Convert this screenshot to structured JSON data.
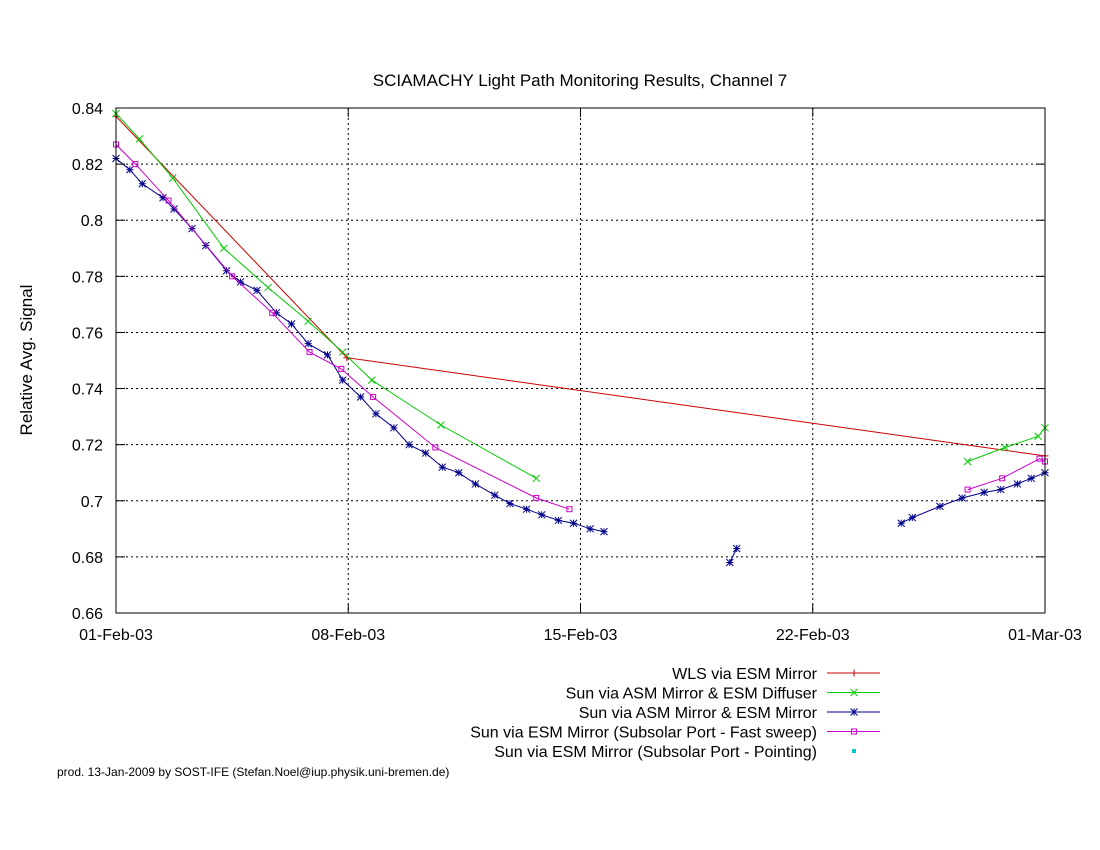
{
  "chart_data": {
    "type": "line",
    "title": "SCIAMACHY Light Path Monitoring Results, Channel 7",
    "xlabel": "",
    "ylabel": "Relative Avg. Signal",
    "xlim": [
      "2003-02-01",
      "2003-03-01"
    ],
    "ylim": [
      0.66,
      0.84
    ],
    "x_ticks": [
      {
        "date": "2003-02-01",
        "label": "01-Feb-03"
      },
      {
        "date": "2003-02-08",
        "label": "08-Feb-03"
      },
      {
        "date": "2003-02-15",
        "label": "15-Feb-03"
      },
      {
        "date": "2003-02-22",
        "label": "22-Feb-03"
      },
      {
        "date": "2003-03-01",
        "label": "01-Mar-03"
      }
    ],
    "y_ticks": [
      {
        "value": 0.66,
        "label": "0.66"
      },
      {
        "value": 0.68,
        "label": "0.68"
      },
      {
        "value": 0.7,
        "label": "0.7"
      },
      {
        "value": 0.72,
        "label": "0.72"
      },
      {
        "value": 0.74,
        "label": "0.74"
      },
      {
        "value": 0.76,
        "label": "0.76"
      },
      {
        "value": 0.78,
        "label": "0.78"
      },
      {
        "value": 0.8,
        "label": "0.8"
      },
      {
        "value": 0.82,
        "label": "0.82"
      },
      {
        "value": 0.84,
        "label": "0.84"
      }
    ],
    "grid": "x-only",
    "legend_position": "bottom-right",
    "series": [
      {
        "name": "WLS via ESM Mirror",
        "color": "#cc0000",
        "marker": "plus",
        "segments": [
          [
            [
              "2003-02-01 00:00",
              0.837
            ],
            [
              "2003-02-07 23:00",
              0.751
            ],
            [
              "2003-03-01 00:00",
              0.716
            ]
          ]
        ]
      },
      {
        "name": "Sun via ASM Mirror & ESM Diffuser",
        "color": "#00cc00",
        "marker": "cross",
        "segments": [
          [
            [
              "2003-02-01 00:00",
              0.838
            ],
            [
              "2003-02-01 17:00",
              0.829
            ],
            [
              "2003-02-02 17:00",
              0.815
            ],
            [
              "2003-02-04 06:00",
              0.79
            ],
            [
              "2003-02-05 14:00",
              0.776
            ],
            [
              "2003-02-06 19:00",
              0.764
            ],
            [
              "2003-02-07 20:00",
              0.753
            ],
            [
              "2003-02-08 17:00",
              0.743
            ],
            [
              "2003-02-10 19:00",
              0.727
            ],
            [
              "2003-02-13 16:00",
              0.708
            ]
          ],
          [
            [
              "2003-02-26 16:00",
              0.714
            ],
            [
              "2003-02-27 19:00",
              0.719
            ],
            [
              "2003-02-28 19:00",
              0.723
            ],
            [
              "2003-03-01 00:00",
              0.726
            ]
          ]
        ]
      },
      {
        "name": "Sun via ASM Mirror & ESM Mirror",
        "color": "#00008b",
        "marker": "star",
        "segments": [
          [
            [
              "2003-02-01 00:00",
              0.822
            ],
            [
              "2003-02-01 10:00",
              0.818
            ],
            [
              "2003-02-01 19:00",
              0.813
            ],
            [
              "2003-02-02 10:00",
              0.808
            ],
            [
              "2003-02-02 18:00",
              0.804
            ],
            [
              "2003-02-03 07:00",
              0.797
            ],
            [
              "2003-02-03 17:00",
              0.791
            ],
            [
              "2003-02-04 08:00",
              0.782
            ],
            [
              "2003-02-04 18:00",
              0.778
            ],
            [
              "2003-02-05 06:00",
              0.775
            ],
            [
              "2003-02-05 20:00",
              0.767
            ],
            [
              "2003-02-06 07:00",
              0.763
            ],
            [
              "2003-02-06 19:00",
              0.756
            ],
            [
              "2003-02-07 09:00",
              0.752
            ],
            [
              "2003-02-07 20:00",
              0.743
            ],
            [
              "2003-02-08 09:00",
              0.737
            ],
            [
              "2003-02-08 20:00",
              0.731
            ],
            [
              "2003-02-09 09:00",
              0.726
            ],
            [
              "2003-02-09 20:00",
              0.72
            ],
            [
              "2003-02-10 08:00",
              0.717
            ],
            [
              "2003-02-10 20:00",
              0.712
            ],
            [
              "2003-02-11 08:00",
              0.71
            ],
            [
              "2003-02-11 20:00",
              0.706
            ],
            [
              "2003-02-12 10:00",
              0.702
            ],
            [
              "2003-02-12 21:00",
              0.699
            ],
            [
              "2003-02-13 09:00",
              0.697
            ],
            [
              "2003-02-13 20:00",
              0.695
            ],
            [
              "2003-02-14 08:00",
              0.693
            ],
            [
              "2003-02-14 19:00",
              0.692
            ],
            [
              "2003-02-15 07:00",
              0.69
            ],
            [
              "2003-02-15 17:00",
              0.689
            ]
          ],
          [
            [
              "2003-02-19 12:00",
              0.678
            ],
            [
              "2003-02-19 17:00",
              0.683
            ]
          ],
          [
            [
              "2003-02-24 16:00",
              0.692
            ],
            [
              "2003-02-25 00:00",
              0.694
            ],
            [
              "2003-02-25 20:00",
              0.698
            ],
            [
              "2003-02-26 12:00",
              0.701
            ],
            [
              "2003-02-27 04:00",
              0.703
            ],
            [
              "2003-02-27 16:00",
              0.704
            ],
            [
              "2003-02-28 04:00",
              0.706
            ],
            [
              "2003-02-28 14:00",
              0.708
            ],
            [
              "2003-03-01 00:00",
              0.71
            ]
          ]
        ]
      },
      {
        "name": "Sun via ESM Mirror (Subsolar Port - Fast sweep)",
        "color": "#cc00cc",
        "marker": "square",
        "segments": [
          [
            [
              "2003-02-01 00:00",
              0.827
            ],
            [
              "2003-02-01 14:00",
              0.82
            ],
            [
              "2003-02-02 14:00",
              0.807
            ],
            [
              "2003-02-04 12:00",
              0.78
            ],
            [
              "2003-02-05 17:00",
              0.767
            ],
            [
              "2003-02-06 20:00",
              0.753
            ],
            [
              "2003-02-07 19:00",
              0.747
            ],
            [
              "2003-02-08 18:00",
              0.737
            ],
            [
              "2003-02-10 15:00",
              0.719
            ],
            [
              "2003-02-13 16:00",
              0.701
            ],
            [
              "2003-02-14 16:00",
              0.697
            ]
          ],
          [
            [
              "2003-02-26 16:00",
              0.704
            ],
            [
              "2003-02-27 17:00",
              0.708
            ],
            [
              "2003-02-28 20:00",
              0.715
            ],
            [
              "2003-03-01 00:00",
              0.714
            ]
          ]
        ]
      },
      {
        "name": "Sun via ESM Mirror (Subsolar Port - Pointing)",
        "color": "#00cccc",
        "marker": "dot",
        "segments": []
      }
    ],
    "footer": "prod. 13-Jan-2009 by SOST-IFE (Stefan.Noel@iup.physik.uni-bremen.de)"
  }
}
